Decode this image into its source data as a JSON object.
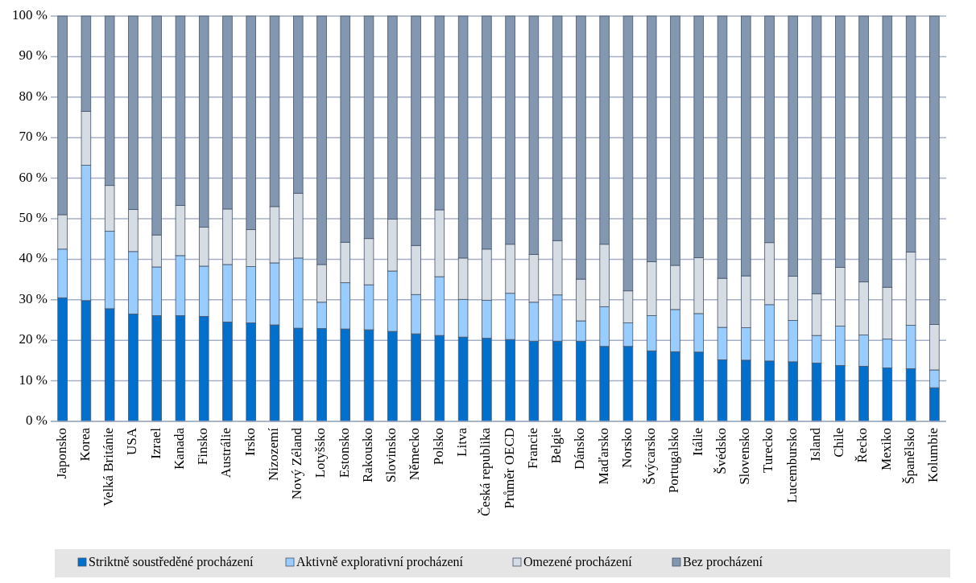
{
  "chart_data": {
    "type": "bar",
    "stacked": true,
    "categories": [
      "Japonsko",
      "Korea",
      "Velká Británie",
      "USA",
      "Izrael",
      "Kanada",
      "Finsko",
      "Austrálie",
      "Irsko",
      "Nizozemí",
      "Nový Zéland",
      "Lotyšsko",
      "Estonsko",
      "Rakousko",
      "Slovinsko",
      "Německo",
      "Polsko",
      "Litva",
      "Česká republika",
      "Průměr OECD",
      "Francie",
      "Belgie",
      "Dánsko",
      "Maďarsko",
      "Norsko",
      "Švýcarsko",
      "Portugalsko",
      "Itálie",
      "Švédsko",
      "Slovensko",
      "Turecko",
      "Lucembursko",
      "Island",
      "Chile",
      "Řecko",
      "Mexiko",
      "Španělsko",
      "Kolumbie"
    ],
    "series": [
      {
        "name": "Striktně soustředěné procházení",
        "color": "#0070cc",
        "values": [
          30.5,
          29.8,
          27.8,
          26.5,
          26.1,
          26.1,
          25.9,
          24.5,
          24.3,
          23.8,
          23,
          22.9,
          22.8,
          22.6,
          22.2,
          21.6,
          21.2,
          20.8,
          20.5,
          20.2,
          19.8,
          19.8,
          19.8,
          18.5,
          18.5,
          17.4,
          17.2,
          17.1,
          15.2,
          15.1,
          14.9,
          14.7,
          14.4,
          13.8,
          13.6,
          13.2,
          13,
          8.3
        ]
      },
      {
        "name": "Aktivně explorativní procházení",
        "color": "#99ccff",
        "values": [
          12,
          33.4,
          19.1,
          15.4,
          12,
          14.8,
          12.4,
          14.2,
          13.9,
          15.3,
          17.3,
          6.5,
          11.4,
          11.1,
          14.9,
          9.7,
          14.5,
          9.3,
          9.4,
          11.4,
          9.6,
          11.4,
          5,
          9.8,
          5.8,
          8.7,
          10.4,
          9.5,
          8,
          8,
          13.9,
          10.2,
          6.8,
          9.7,
          7.7,
          7.1,
          10.7,
          4.4
        ]
      },
      {
        "name": "Omezené procházení",
        "color": "#d6dce4",
        "values": [
          8.5,
          13.3,
          11.3,
          10.4,
          7.9,
          12.4,
          9.6,
          13.7,
          9.1,
          13.9,
          16,
          9.3,
          10,
          11.4,
          12.8,
          12.1,
          16.5,
          10.2,
          12.6,
          12.1,
          11.8,
          13.4,
          10.3,
          15.4,
          7.9,
          13.3,
          10.9,
          13.8,
          12.1,
          12.8,
          15.3,
          10.9,
          10.3,
          14.5,
          13.1,
          12.8,
          18.1,
          11.2
        ]
      },
      {
        "name": "Bez procházení",
        "color": "#8497b0",
        "values": [
          49,
          23.5,
          41.8,
          47.7,
          54,
          46.7,
          52.1,
          47.6,
          52.7,
          47,
          43.7,
          61.3,
          55.8,
          54.9,
          50.1,
          56.6,
          47.8,
          59.7,
          57.5,
          56.3,
          58.8,
          55.4,
          64.9,
          56.3,
          67.8,
          60.6,
          61.5,
          59.6,
          64.7,
          64.1,
          55.9,
          64.2,
          68.5,
          62,
          65.6,
          66.9,
          58.2,
          76.1
        ]
      }
    ],
    "ylim": [
      0,
      100
    ],
    "yticks": [
      {
        "value": 0,
        "label": "0 %"
      },
      {
        "value": 10,
        "label": "10 %"
      },
      {
        "value": 20,
        "label": "20 %"
      },
      {
        "value": 30,
        "label": "30 %"
      },
      {
        "value": 40,
        "label": "40 %"
      },
      {
        "value": 50,
        "label": "50 %"
      },
      {
        "value": 60,
        "label": "60 %"
      },
      {
        "value": 70,
        "label": "70 %"
      },
      {
        "value": 80,
        "label": "80 %"
      },
      {
        "value": 90,
        "label": "90 %"
      },
      {
        "value": 100,
        "label": "100 %"
      }
    ],
    "grid": "y",
    "legend": "bottom"
  }
}
